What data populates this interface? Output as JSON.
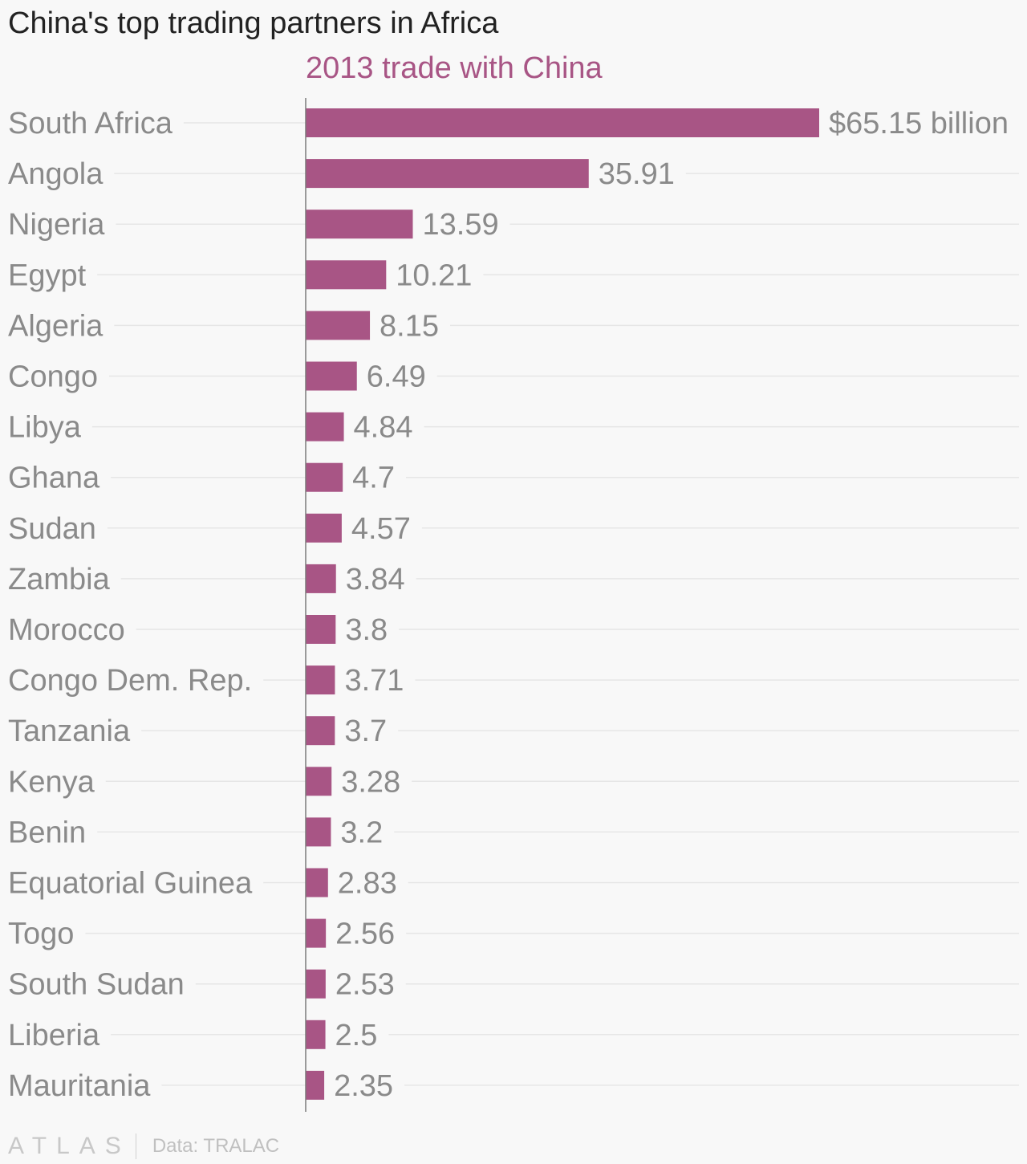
{
  "title": "China's top trading partners in Africa",
  "footer": {
    "logo": "ATLAS",
    "source": "Data: TRALAC"
  },
  "colors": {
    "bar": "#a85585",
    "series_title": "#a85585",
    "gridline": "#e6e6e6",
    "axis": "#7a7a7a",
    "label": "#8a8a8a"
  },
  "chart_data": {
    "type": "bar",
    "orientation": "horizontal",
    "series": [
      {
        "name": "2013 trade with China",
        "values": [
          65.15,
          35.91,
          13.59,
          10.21,
          8.15,
          6.49,
          4.84,
          4.7,
          4.57,
          3.84,
          3.8,
          3.71,
          3.7,
          3.28,
          3.2,
          2.83,
          2.56,
          2.53,
          2.5,
          2.35
        ],
        "value_labels": [
          "$65.15 billion",
          "35.91",
          "13.59",
          "10.21",
          "8.15",
          "6.49",
          "4.84",
          "4.7",
          "4.57",
          "3.84",
          "3.8",
          "3.71",
          "3.7",
          "3.28",
          "3.2",
          "2.83",
          "2.56",
          "2.53",
          "2.5",
          "2.35"
        ]
      }
    ],
    "categories": [
      "South Africa",
      "Angola",
      "Nigeria",
      "Egypt",
      "Algeria",
      "Congo",
      "Libya",
      "Ghana",
      "Sudan",
      "Zambia",
      "Morocco",
      "Congo Dem. Rep.",
      "Tanzania",
      "Kenya",
      "Benin",
      "Equatorial Guinea",
      "Togo",
      "South Sudan",
      "Liberia",
      "Mauritania"
    ],
    "xlim": [
      0,
      65.15
    ],
    "grid": true,
    "legend": "none"
  }
}
